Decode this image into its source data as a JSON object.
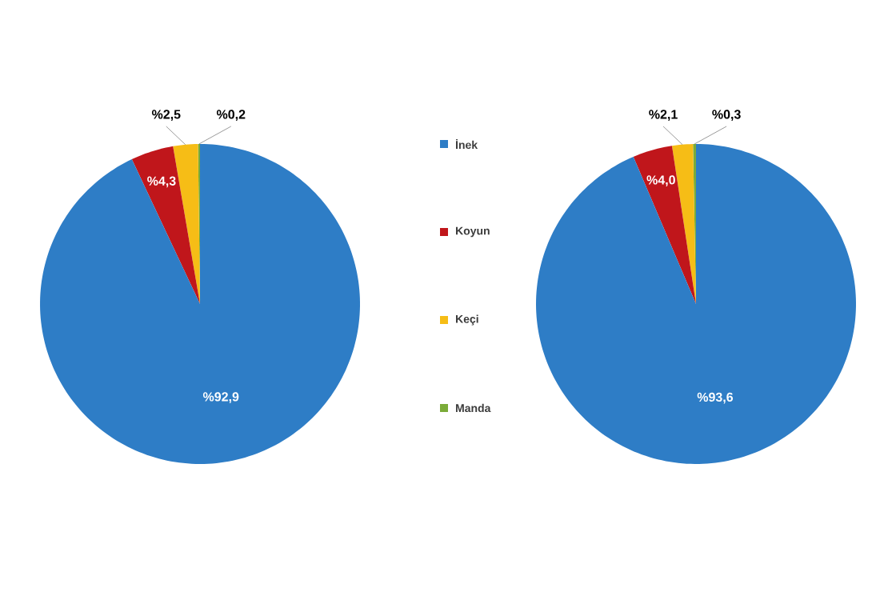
{
  "chart_data": [
    {
      "type": "pie",
      "categories": [
        "İnek",
        "Koyun",
        "Keçi",
        "Manda"
      ],
      "values": [
        92.9,
        4.3,
        2.5,
        0.2
      ],
      "colors": [
        "#2e7dc6",
        "#c0161b",
        "#f6bd16",
        "#7aab38"
      ],
      "value_labels": [
        "%92,9",
        "%4,3",
        "%2,5",
        "%0,2"
      ],
      "legend": "right"
    },
    {
      "type": "pie",
      "categories": [
        null,
        null,
        null,
        null
      ],
      "values": [
        93.6,
        4.0,
        2.1,
        0.3
      ],
      "colors": [
        "#2e7dc6",
        "#c0161b",
        "#f6bd16",
        "#7aab38"
      ],
      "value_labels": [
        "%93,6",
        "%4,0",
        "%2,1",
        "%0,3"
      ]
    }
  ]
}
